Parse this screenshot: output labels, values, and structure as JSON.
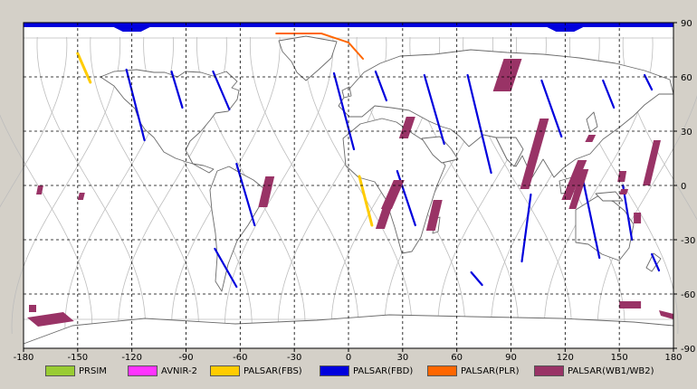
{
  "map": {
    "x_ticks": [
      "-180",
      "-150",
      "-120",
      "-90",
      "-60",
      "-30",
      "0",
      "30",
      "60",
      "90",
      "120",
      "150",
      "180"
    ],
    "y_ticks": [
      "90",
      "60",
      "30",
      "0",
      "-30",
      "-60",
      "-90"
    ],
    "colors": {
      "ocean": "#ffffff",
      "coast": "#6a6a6a",
      "orbit": "#bdbdbd",
      "grid": "#000000",
      "frame": "#d4d0c8"
    }
  },
  "legend": {
    "items": [
      {
        "label": "PRSIM",
        "color": "#99cc33"
      },
      {
        "label": "AVNIR-2",
        "color": "#ff33ff"
      },
      {
        "label": "PALSAR(FBS)",
        "color": "#ffcc00"
      },
      {
        "label": "PALSAR(FBD)",
        "color": "#0000dd"
      },
      {
        "label": "PALSAR(PLR)",
        "color": "#ff6600"
      },
      {
        "label": "PALSAR(WB1/WB2)",
        "color": "#993366"
      }
    ]
  },
  "chart_data": {
    "type": "scatter",
    "xlim": [
      -180,
      180
    ],
    "ylim": [
      -90,
      90
    ],
    "grid": true,
    "legend_position": "bottom",
    "swaths": [
      {
        "mode": "PALSAR(FBS)",
        "points": [
          [
            -150,
            73
          ],
          [
            -143,
            57
          ]
        ]
      },
      {
        "mode": "PALSAR(FBS)",
        "points": [
          [
            6,
            5
          ],
          [
            13,
            -22
          ]
        ]
      },
      {
        "mode": "PALSAR(FBD)",
        "points": [
          [
            -123,
            64
          ],
          [
            -113,
            25
          ]
        ]
      },
      {
        "mode": "PALSAR(FBD)",
        "points": [
          [
            -98,
            63
          ],
          [
            -92,
            43
          ]
        ]
      },
      {
        "mode": "PALSAR(FBD)",
        "points": [
          [
            -75,
            63
          ],
          [
            -66,
            42
          ]
        ]
      },
      {
        "mode": "PALSAR(FBD)",
        "points": [
          [
            -62,
            12
          ],
          [
            -52,
            -22
          ]
        ]
      },
      {
        "mode": "PALSAR(FBD)",
        "points": [
          [
            -74,
            -35
          ],
          [
            -62,
            -56
          ]
        ]
      },
      {
        "mode": "PALSAR(FBD)",
        "points": [
          [
            -8,
            62
          ],
          [
            3,
            20
          ]
        ]
      },
      {
        "mode": "PALSAR(FBD)",
        "points": [
          [
            15,
            63
          ],
          [
            21,
            47
          ]
        ]
      },
      {
        "mode": "PALSAR(FBD)",
        "points": [
          [
            27,
            8
          ],
          [
            37,
            -22
          ]
        ]
      },
      {
        "mode": "PALSAR(FBD)",
        "points": [
          [
            42,
            61
          ],
          [
            53,
            23
          ]
        ]
      },
      {
        "mode": "PALSAR(FBD)",
        "points": [
          [
            66,
            61
          ],
          [
            79,
            7
          ]
        ]
      },
      {
        "mode": "PALSAR(FBD)",
        "points": [
          [
            96,
            -42
          ],
          [
            101,
            -5
          ]
        ]
      },
      {
        "mode": "PALSAR(FBD)",
        "points": [
          [
            107,
            58
          ],
          [
            118,
            27
          ]
        ]
      },
      {
        "mode": "PALSAR(FBD)",
        "points": [
          [
            128,
            12
          ],
          [
            139,
            -40
          ]
        ]
      },
      {
        "mode": "PALSAR(FBD)",
        "points": [
          [
            141,
            58
          ],
          [
            147,
            43
          ]
        ]
      },
      {
        "mode": "PALSAR(FBD)",
        "points": [
          [
            152,
            0
          ],
          [
            157,
            -30
          ]
        ]
      },
      {
        "mode": "PALSAR(FBD)",
        "points": [
          [
            164,
            61
          ],
          [
            168,
            53
          ]
        ]
      },
      {
        "mode": "PALSAR(FBD)",
        "points": [
          [
            168,
            -38
          ],
          [
            172,
            -47
          ]
        ]
      },
      {
        "mode": "PALSAR(FBD)",
        "points": [
          [
            68,
            -48
          ],
          [
            74,
            -55
          ]
        ]
      },
      {
        "mode": "PALSAR(PLR)",
        "points": [
          [
            -40,
            84
          ],
          [
            -15,
            84
          ],
          [
            0,
            79
          ],
          [
            8,
            70
          ]
        ]
      },
      {
        "mode": "PALSAR(WB1/WB2)",
        "points": [
          [
            86,
            70
          ],
          [
            96,
            70
          ],
          [
            90,
            52
          ],
          [
            80,
            52
          ]
        ]
      },
      {
        "mode": "PALSAR(WB1/WB2)",
        "points": [
          [
            32,
            38
          ],
          [
            37,
            38
          ],
          [
            33,
            26
          ],
          [
            28,
            26
          ]
        ]
      },
      {
        "mode": "PALSAR(WB1/WB2)",
        "points": [
          [
            25,
            3
          ],
          [
            31,
            3
          ],
          [
            24,
            -13
          ],
          [
            18,
            -13
          ]
        ]
      },
      {
        "mode": "PALSAR(WB1/WB2)",
        "points": [
          [
            19,
            -12
          ],
          [
            24,
            -12
          ],
          [
            20,
            -24
          ],
          [
            15,
            -24
          ]
        ]
      },
      {
        "mode": "PALSAR(WB1/WB2)",
        "points": [
          [
            47,
            -8
          ],
          [
            52,
            -8
          ],
          [
            48,
            -25
          ],
          [
            43,
            -25
          ]
        ]
      },
      {
        "mode": "PALSAR(WB1/WB2)",
        "points": [
          [
            -46,
            5
          ],
          [
            -41,
            5
          ],
          [
            -45,
            -12
          ],
          [
            -50,
            -12
          ]
        ]
      },
      {
        "mode": "PALSAR(WB1/WB2)",
        "points": [
          [
            106,
            37
          ],
          [
            111,
            37
          ],
          [
            100,
            -2
          ],
          [
            95,
            -2
          ]
        ]
      },
      {
        "mode": "PALSAR(WB1/WB2)",
        "points": [
          [
            127,
            14
          ],
          [
            132,
            14
          ],
          [
            123,
            -8
          ],
          [
            118,
            -8
          ]
        ]
      },
      {
        "mode": "PALSAR(WB1/WB2)",
        "points": [
          [
            129,
            9
          ],
          [
            133,
            9
          ],
          [
            126,
            -13
          ],
          [
            122,
            -13
          ]
        ]
      },
      {
        "mode": "PALSAR(WB1/WB2)",
        "points": [
          [
            169,
            25
          ],
          [
            173,
            25
          ],
          [
            167,
            0
          ],
          [
            163,
            0
          ]
        ]
      },
      {
        "mode": "PALSAR(WB1/WB2)",
        "points": [
          [
            133,
            28
          ],
          [
            137,
            28
          ],
          [
            135,
            24
          ],
          [
            131,
            24
          ]
        ]
      },
      {
        "mode": "PALSAR(WB1/WB2)",
        "points": [
          [
            150,
            8
          ],
          [
            154,
            8
          ],
          [
            153,
            2
          ],
          [
            149,
            2
          ]
        ]
      },
      {
        "mode": "PALSAR(WB1/WB2)",
        "points": [
          [
            151,
            -2
          ],
          [
            155,
            -2
          ],
          [
            154,
            -5
          ],
          [
            150,
            -5
          ]
        ]
      },
      {
        "mode": "PALSAR(WB1/WB2)",
        "points": [
          [
            158,
            -15
          ],
          [
            162,
            -15
          ],
          [
            162,
            -21
          ],
          [
            158,
            -21
          ]
        ]
      },
      {
        "mode": "PALSAR(WB1/WB2)",
        "points": [
          [
            -172,
            0
          ],
          [
            -169,
            0
          ],
          [
            -170,
            -5
          ],
          [
            -173,
            -5
          ]
        ]
      },
      {
        "mode": "PALSAR(WB1/WB2)",
        "points": [
          [
            -149,
            -4
          ],
          [
            -146,
            -4
          ],
          [
            -147,
            -8
          ],
          [
            -150,
            -8
          ]
        ]
      },
      {
        "mode": "PALSAR(WB1/WB2)",
        "points": [
          [
            -177,
            -66
          ],
          [
            -173,
            -66
          ],
          [
            -173,
            -70
          ],
          [
            -177,
            -70
          ]
        ]
      },
      {
        "mode": "PALSAR(WB1/WB2)",
        "points": [
          [
            -178,
            -73
          ],
          [
            -158,
            -70
          ],
          [
            -152,
            -75
          ],
          [
            -172,
            -78
          ]
        ]
      },
      {
        "mode": "PALSAR(WB1/WB2)",
        "points": [
          [
            150,
            -64
          ],
          [
            162,
            -64
          ],
          [
            162,
            -68
          ],
          [
            150,
            -68
          ]
        ]
      },
      {
        "mode": "PALSAR(WB1/WB2)",
        "points": [
          [
            172,
            -69
          ],
          [
            180,
            -71
          ],
          [
            180,
            -74
          ],
          [
            173,
            -72
          ]
        ]
      }
    ],
    "coverage_band": {
      "mode": "PALSAR(FBD)",
      "lat_north": 90,
      "lat_south": 87.5
    }
  }
}
